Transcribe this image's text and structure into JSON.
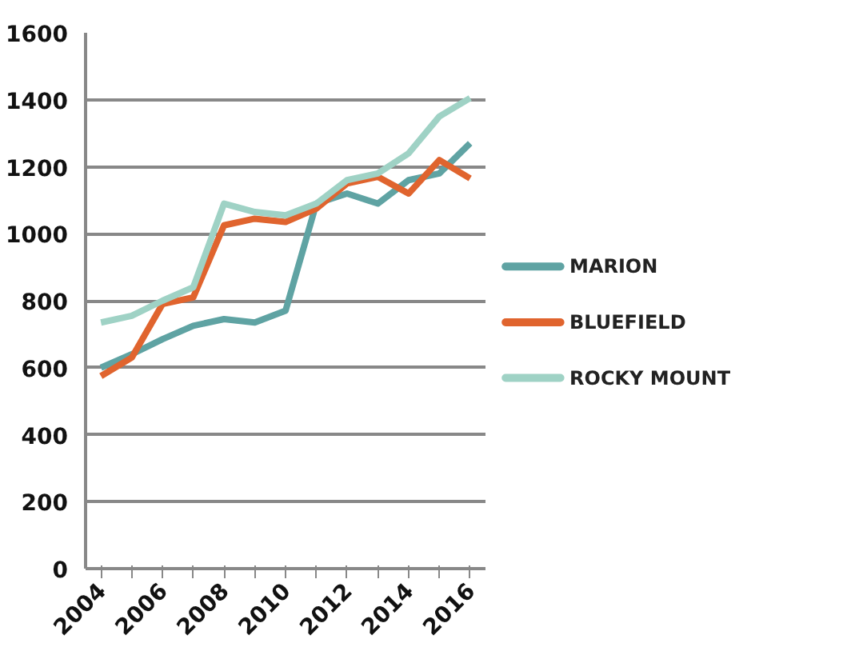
{
  "chart_data": {
    "type": "line",
    "categories": [
      "2004",
      null,
      "2006",
      null,
      "2008",
      null,
      "2010",
      null,
      "2012",
      null,
      "2014",
      null,
      "2016"
    ],
    "series": [
      {
        "name": "MARION",
        "color": "#5fa3a3",
        "values": [
          600,
          640,
          685,
          725,
          745,
          735,
          770,
          1090,
          1120,
          1090,
          1160,
          1180,
          1270
        ]
      },
      {
        "name": "BLUEFIELD",
        "color": "#e0642e",
        "values": [
          575,
          630,
          790,
          810,
          1025,
          1045,
          1035,
          1075,
          1150,
          1170,
          1120,
          1220,
          1165
        ]
      },
      {
        "name": "ROCKY MOUNT",
        "color": "#9fd2c5",
        "values": [
          735,
          755,
          800,
          840,
          1090,
          1065,
          1055,
          1090,
          1160,
          1180,
          1240,
          1350,
          1405
        ]
      }
    ],
    "ylim": [
      0,
      1600
    ],
    "yticks": [
      0,
      200,
      400,
      600,
      800,
      1000,
      1200,
      1400,
      1600
    ],
    "grid": "y",
    "legend": "right",
    "marker": "none",
    "line_style": "solid"
  }
}
